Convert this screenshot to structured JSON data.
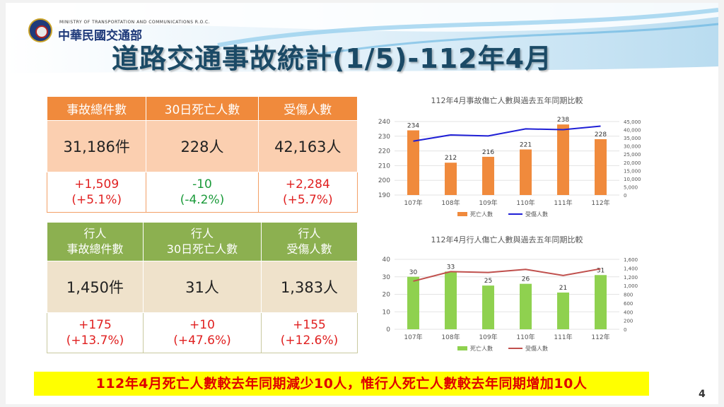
{
  "header": {
    "ministry_en": "MINISTRY OF TRANSPORTATION AND COMMUNICATIONS R.O.C.",
    "ministry_zh": "中華民國交通部",
    "title": "道路交通事故統計(1/5)-112年4月"
  },
  "table_all": {
    "headers": [
      "事故總件數",
      "30日死亡人數",
      "受傷人數"
    ],
    "values": [
      "31,186件",
      "228人",
      "42,163人"
    ],
    "changes": [
      [
        "+1,509",
        "(+5.1%)"
      ],
      [
        "-10",
        "(-4.2%)"
      ],
      [
        "+2,284",
        "(+5.7%)"
      ]
    ]
  },
  "table_ped": {
    "headers": [
      [
        "行人",
        "事故總件數"
      ],
      [
        "行人",
        "30日死亡人數"
      ],
      [
        "行人",
        "受傷人數"
      ]
    ],
    "values": [
      "1,450件",
      "31人",
      "1,383人"
    ],
    "changes": [
      [
        "+175",
        "(+13.7%)"
      ],
      [
        "+10",
        "(+47.6%)"
      ],
      [
        "+155",
        "(+12.6%)"
      ]
    ]
  },
  "colors": {
    "orange": "#f08a3c",
    "green": "#8cb050",
    "blue_line": "#1f1fd6",
    "red_line": "#c0504d",
    "highlight": "#ffff00",
    "alert_text": "#e00000"
  },
  "chart_data": [
    {
      "type": "bar",
      "title": "112年4月事故傷亡人數與過去五年同期比較",
      "categories": [
        "107年",
        "108年",
        "109年",
        "110年",
        "111年",
        "112年"
      ],
      "series": [
        {
          "name": "死亡人數",
          "type": "bar",
          "axis": "left",
          "values": [
            234,
            212,
            216,
            221,
            238,
            228
          ],
          "color": "#f08a3c"
        },
        {
          "name": "受傷人數",
          "type": "line",
          "axis": "right",
          "values": [
            33000,
            36800,
            36200,
            40500,
            40000,
            42163
          ],
          "color": "#1f1fd6"
        }
      ],
      "ylim": [
        190,
        240
      ],
      "yticks": [
        "190",
        "200",
        "210",
        "220",
        "230",
        "240"
      ],
      "y2lim": [
        0,
        45000
      ],
      "y2ticks": [
        "0",
        "5,000",
        "10,000",
        "15,000",
        "20,000",
        "25,000",
        "30,000",
        "35,000",
        "40,000",
        "45,000"
      ],
      "grid": true,
      "legend": "bottom"
    },
    {
      "type": "bar",
      "title": "112年4月行人傷亡人數與過去五年同期比較",
      "categories": [
        "107年",
        "108年",
        "109年",
        "110年",
        "111年",
        "112年"
      ],
      "series": [
        {
          "name": "死亡人數",
          "type": "bar",
          "axis": "left",
          "values": [
            30,
            33,
            25,
            26,
            21,
            31
          ],
          "color": "#8fd14f"
        },
        {
          "name": "受傷人數",
          "type": "line",
          "axis": "right",
          "values": [
            1100,
            1320,
            1300,
            1370,
            1230,
            1383
          ],
          "color": "#c0504d"
        }
      ],
      "ylim": [
        0,
        40
      ],
      "yticks": [
        "0",
        "10",
        "20",
        "30",
        "40"
      ],
      "y2lim": [
        0,
        1600
      ],
      "y2ticks": [
        "0",
        "200",
        "400",
        "600",
        "800",
        "1,000",
        "1,200",
        "1,400",
        "1,600"
      ],
      "grid": true,
      "legend": "bottom"
    }
  ],
  "footer": {
    "note": "112年4月死亡人數較去年同期減少10人，惟行人死亡人數較去年同期增加10人",
    "page": "4"
  }
}
